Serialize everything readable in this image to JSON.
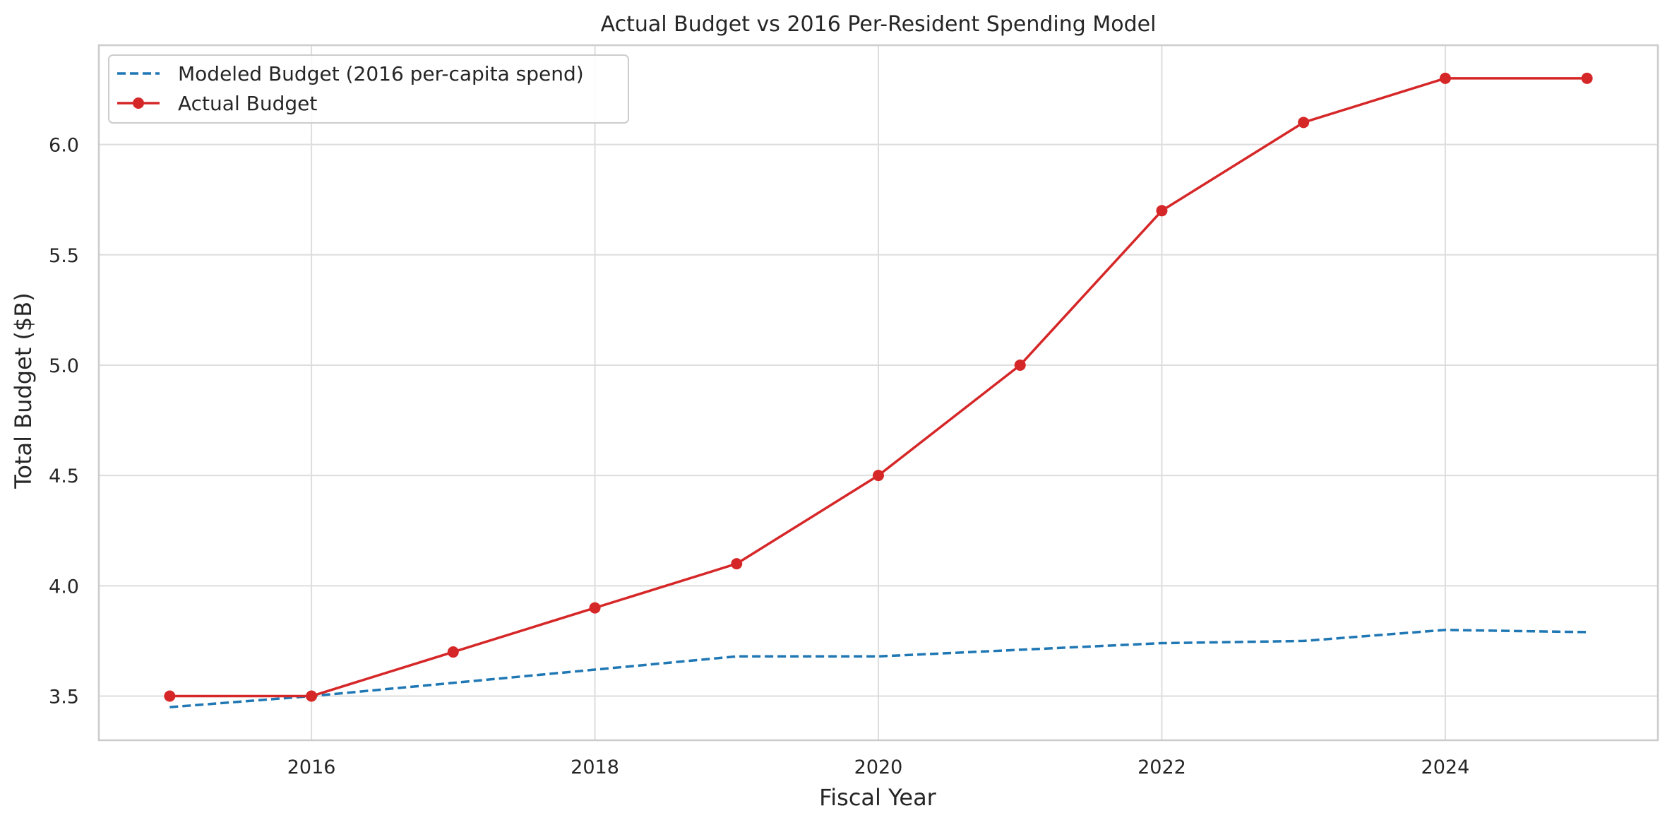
{
  "chart_data": {
    "type": "line",
    "title": "Actual Budget vs 2016 Per-Resident Spending Model",
    "xlabel": "Fiscal Year",
    "ylabel": "Total Budget ($B)",
    "xlim": [
      2014.5,
      2025.5
    ],
    "ylim": [
      3.3,
      6.45
    ],
    "xticks": [
      2016,
      2018,
      2020,
      2022,
      2024
    ],
    "yticks": [
      3.5,
      4.0,
      4.5,
      5.0,
      5.5,
      6.0
    ],
    "ytick_labels": [
      "3.5",
      "4.0",
      "4.5",
      "5.0",
      "5.5",
      "6.0"
    ],
    "grid": true,
    "legend_position": "top-left",
    "x": [
      2015,
      2016,
      2017,
      2018,
      2019,
      2020,
      2021,
      2022,
      2023,
      2024,
      2025
    ],
    "series": [
      {
        "name": "Modeled Budget (2016 per-capita spend)",
        "style": "dashed",
        "color": "#1f77b4",
        "values": [
          3.45,
          3.5,
          3.56,
          3.62,
          3.68,
          3.68,
          3.71,
          3.74,
          3.75,
          3.8,
          3.79
        ]
      },
      {
        "name": "Actual Budget",
        "style": "solid-markers",
        "color": "#d62728",
        "values": [
          3.5,
          3.5,
          3.7,
          3.9,
          4.1,
          4.5,
          5.0,
          5.7,
          6.1,
          6.3,
          6.3
        ]
      }
    ]
  }
}
